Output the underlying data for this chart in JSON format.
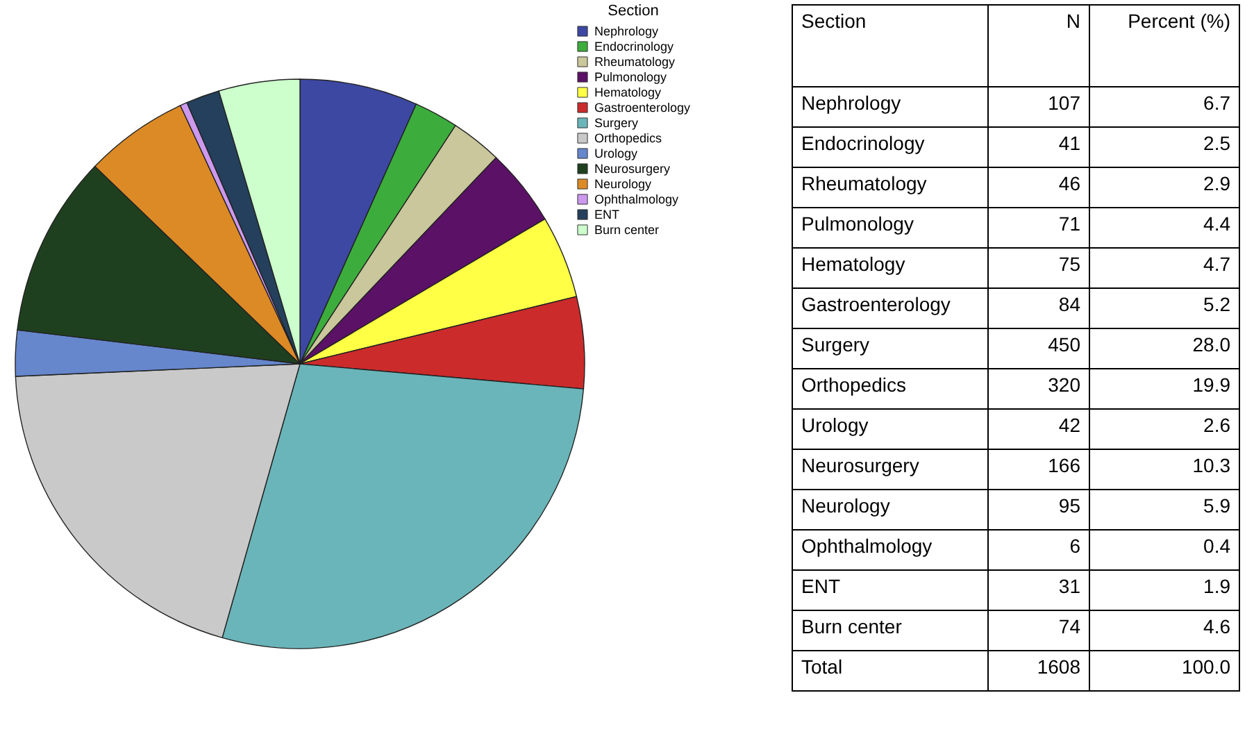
{
  "chart_data": {
    "type": "pie",
    "legend_title": "Section",
    "legend": "top right",
    "categories": [
      "Nephrology",
      "Endocrinology",
      "Rheumatology",
      "Pulmonology",
      "Hematology",
      "Gastroenterology",
      "Surgery",
      "Orthopedics",
      "Urology",
      "Neurosurgery",
      "Neurology",
      "Ophthalmology",
      "ENT",
      "Burn center"
    ],
    "values": [
      6.7,
      2.5,
      2.9,
      4.4,
      4.7,
      5.2,
      28.0,
      19.9,
      2.6,
      10.3,
      5.9,
      0.4,
      1.9,
      4.6
    ],
    "colors": [
      "#3d48a2",
      "#3cad3c",
      "#c9c79b",
      "#5b1166",
      "#ffff45",
      "#cc2b2b",
      "#6ab5b9",
      "#c9c9c9",
      "#6687cc",
      "#1f401f",
      "#dc8a26",
      "#cc99ee",
      "#24405c",
      "#ccffcc"
    ],
    "annotations": [
      "Section",
      "N",
      "Percent (%)",
      "107",
      "41",
      "46",
      "71",
      "75",
      "84",
      "450",
      "320",
      "42",
      "166",
      "95",
      "6",
      "31",
      "74",
      "6.7",
      "2.5",
      "2.9",
      "4.4",
      "4.7",
      "5.2",
      "28.0",
      "19.9",
      "2.6",
      "10.3",
      "5.9",
      "0.4",
      "1.9",
      "4.6",
      "Total",
      "1608",
      "100.0"
    ]
  }
}
